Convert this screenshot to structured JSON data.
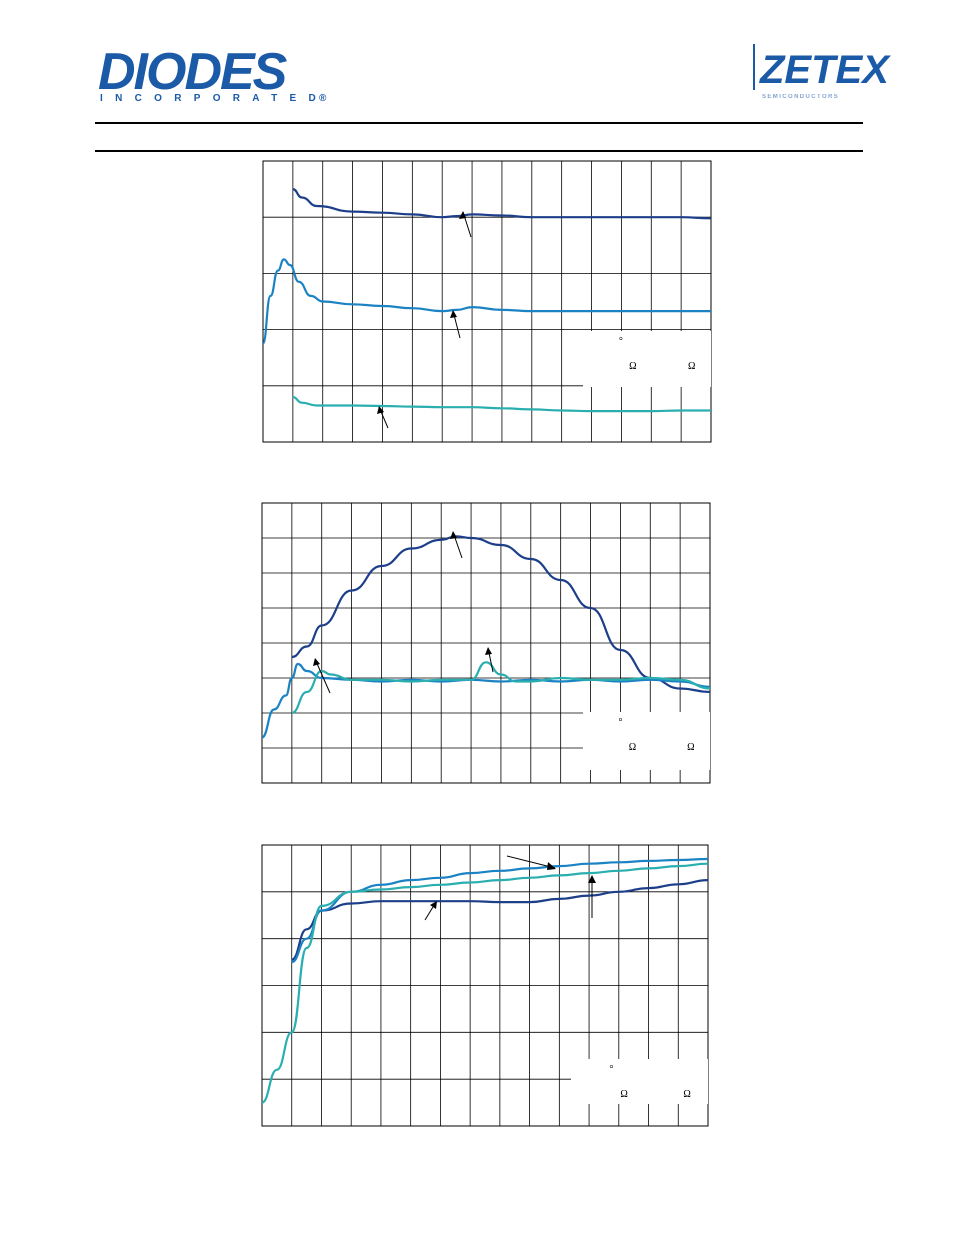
{
  "header": {
    "diodes_logo": {
      "name": "DIODES",
      "subtitle": "INCORPORATED",
      "registered": "®",
      "color": "#1b5aa6"
    },
    "zetex_logo": {
      "name": "ZETEX",
      "tagline": "SEMICONDUCTORS",
      "color": "#1b5aa6"
    }
  },
  "colors": {
    "series_dark": "#1d3f8a",
    "series_mid": "#1b83c4",
    "series_teal": "#2aaeb0",
    "grid": "#000000",
    "rule": "#000000"
  },
  "chart_data": [
    {
      "type": "line",
      "grid": true,
      "grid_cols": 15,
      "grid_rows": 5,
      "xlim": [
        0,
        15
      ],
      "ylim": [
        0,
        5
      ],
      "legend_box_glyphs": [
        "°",
        "Ω",
        "Ω"
      ],
      "series": [
        {
          "color_key": "series_dark",
          "points": [
            [
              1,
              4.5
            ],
            [
              1.3,
              4.35
            ],
            [
              1.8,
              4.2
            ],
            [
              3,
              4.1
            ],
            [
              4,
              4.08
            ],
            [
              5,
              4.05
            ],
            [
              6,
              4.0
            ],
            [
              6.5,
              4.02
            ],
            [
              7,
              4.05
            ],
            [
              8,
              4.03
            ],
            [
              9,
              4.0
            ],
            [
              10,
              4.0
            ],
            [
              11,
              4.0
            ],
            [
              12,
              4.0
            ],
            [
              13,
              4.0
            ],
            [
              14,
              4.0
            ],
            [
              15,
              3.98
            ]
          ]
        },
        {
          "color_key": "series_mid",
          "points": [
            [
              0,
              1.75
            ],
            [
              0.25,
              2.6
            ],
            [
              0.5,
              3.05
            ],
            [
              0.7,
              3.25
            ],
            [
              0.9,
              3.15
            ],
            [
              1.2,
              2.85
            ],
            [
              1.6,
              2.6
            ],
            [
              2,
              2.5
            ],
            [
              3,
              2.45
            ],
            [
              4,
              2.42
            ],
            [
              5,
              2.38
            ],
            [
              6,
              2.33
            ],
            [
              6.5,
              2.35
            ],
            [
              7,
              2.4
            ],
            [
              8,
              2.35
            ],
            [
              9,
              2.33
            ],
            [
              10,
              2.33
            ],
            [
              11,
              2.33
            ],
            [
              12,
              2.33
            ],
            [
              13,
              2.33
            ],
            [
              14,
              2.33
            ],
            [
              15,
              2.33
            ]
          ]
        },
        {
          "color_key": "series_teal",
          "points": [
            [
              1,
              0.8
            ],
            [
              1.3,
              0.7
            ],
            [
              1.8,
              0.65
            ],
            [
              3,
              0.65
            ],
            [
              4,
              0.64
            ],
            [
              5,
              0.63
            ],
            [
              6,
              0.62
            ],
            [
              7,
              0.62
            ],
            [
              8,
              0.6
            ],
            [
              9,
              0.58
            ],
            [
              10,
              0.56
            ],
            [
              11,
              0.55
            ],
            [
              12,
              0.55
            ],
            [
              13,
              0.55
            ],
            [
              14,
              0.56
            ],
            [
              15,
              0.56
            ]
          ]
        }
      ]
    },
    {
      "type": "line",
      "grid": true,
      "grid_cols": 15,
      "grid_rows": 8,
      "xlim": [
        0,
        15
      ],
      "ylim": [
        0,
        8
      ],
      "legend_box_glyphs": [
        "°",
        "Ω",
        "Ω"
      ],
      "series": [
        {
          "color_key": "series_dark",
          "points": [
            [
              1,
              3.6
            ],
            [
              1.5,
              3.9
            ],
            [
              2,
              4.5
            ],
            [
              3,
              5.5
            ],
            [
              4,
              6.2
            ],
            [
              5,
              6.7
            ],
            [
              6,
              6.95
            ],
            [
              6.5,
              7.05
            ],
            [
              7,
              7.0
            ],
            [
              8,
              6.8
            ],
            [
              9,
              6.4
            ],
            [
              10,
              5.8
            ],
            [
              11,
              5.0
            ],
            [
              12,
              3.8
            ],
            [
              13,
              3.0
            ],
            [
              14,
              2.7
            ],
            [
              15,
              2.6
            ]
          ]
        },
        {
          "color_key": "series_mid",
          "points": [
            [
              0,
              1.3
            ],
            [
              0.4,
              2.1
            ],
            [
              0.8,
              2.5
            ],
            [
              1,
              3.0
            ],
            [
              1.2,
              3.4
            ],
            [
              1.5,
              3.2
            ],
            [
              2,
              3.0
            ],
            [
              3,
              2.95
            ],
            [
              4,
              2.9
            ],
            [
              5,
              2.95
            ],
            [
              6,
              2.9
            ],
            [
              7,
              2.95
            ],
            [
              8,
              2.9
            ],
            [
              9,
              2.95
            ],
            [
              10,
              2.9
            ],
            [
              11,
              2.95
            ],
            [
              12,
              2.9
            ],
            [
              13,
              2.95
            ],
            [
              14,
              2.9
            ],
            [
              15,
              2.75
            ]
          ]
        },
        {
          "color_key": "series_teal",
          "points": [
            [
              1,
              2.0
            ],
            [
              1.5,
              2.6
            ],
            [
              2,
              3.2
            ],
            [
              2.3,
              3.1
            ],
            [
              3,
              2.95
            ],
            [
              4,
              2.95
            ],
            [
              5,
              2.9
            ],
            [
              6,
              2.95
            ],
            [
              7,
              2.95
            ],
            [
              7.5,
              3.45
            ],
            [
              8,
              3.1
            ],
            [
              8.5,
              2.9
            ],
            [
              9,
              2.9
            ],
            [
              10,
              3.0
            ],
            [
              11,
              2.95
            ],
            [
              12,
              2.95
            ],
            [
              13,
              3.0
            ],
            [
              14,
              2.95
            ],
            [
              15,
              2.7
            ]
          ]
        }
      ]
    },
    {
      "type": "line",
      "grid": true,
      "grid_cols": 15,
      "grid_rows": 6,
      "xlim": [
        0,
        15
      ],
      "ylim": [
        0,
        6
      ],
      "legend_box_glyphs": [
        "°",
        "Ω",
        "Ω"
      ],
      "series": [
        {
          "color_key": "series_dark",
          "points": [
            [
              1,
              3.55
            ],
            [
              1.5,
              4.2
            ],
            [
              2,
              4.6
            ],
            [
              3,
              4.75
            ],
            [
              4,
              4.8
            ],
            [
              5,
              4.8
            ],
            [
              6,
              4.8
            ],
            [
              7,
              4.8
            ],
            [
              8,
              4.78
            ],
            [
              9,
              4.78
            ],
            [
              10,
              4.85
            ],
            [
              11,
              4.92
            ],
            [
              12,
              5.0
            ],
            [
              13,
              5.08
            ],
            [
              14,
              5.16
            ],
            [
              15,
              5.25
            ]
          ]
        },
        {
          "color_key": "series_mid",
          "points": [
            [
              1,
              3.5
            ],
            [
              1.5,
              4.0
            ],
            [
              2,
              4.6
            ],
            [
              3,
              5.0
            ],
            [
              4,
              5.15
            ],
            [
              5,
              5.25
            ],
            [
              6,
              5.3
            ],
            [
              7,
              5.4
            ],
            [
              8,
              5.45
            ],
            [
              9,
              5.5
            ],
            [
              10,
              5.55
            ],
            [
              11,
              5.6
            ],
            [
              12,
              5.63
            ],
            [
              13,
              5.66
            ],
            [
              14,
              5.68
            ],
            [
              15,
              5.7
            ]
          ]
        },
        {
          "color_key": "series_teal",
          "points": [
            [
              0,
              0.5
            ],
            [
              0.5,
              1.2
            ],
            [
              1,
              2.0
            ],
            [
              1.5,
              3.8
            ],
            [
              2,
              4.7
            ],
            [
              3,
              5.0
            ],
            [
              4,
              5.05
            ],
            [
              5,
              5.1
            ],
            [
              6,
              5.15
            ],
            [
              7,
              5.2
            ],
            [
              8,
              5.25
            ],
            [
              9,
              5.3
            ],
            [
              10,
              5.35
            ],
            [
              11,
              5.4
            ],
            [
              12,
              5.45
            ],
            [
              13,
              5.5
            ],
            [
              14,
              5.55
            ],
            [
              15,
              5.6
            ]
          ]
        }
      ]
    }
  ]
}
